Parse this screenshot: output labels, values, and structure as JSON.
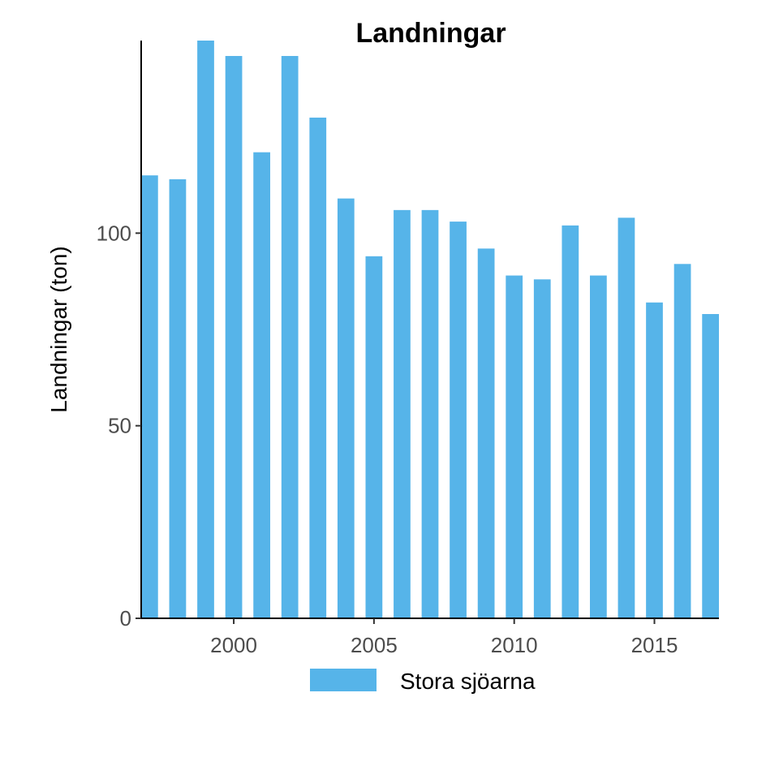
{
  "chart_data": {
    "type": "bar",
    "title": "Landningar",
    "xlabel": "",
    "ylabel": "Landningar (ton)",
    "x": [
      1997,
      1998,
      1999,
      2000,
      2001,
      2002,
      2003,
      2004,
      2005,
      2006,
      2007,
      2008,
      2009,
      2010,
      2011,
      2012,
      2013,
      2014,
      2015,
      2016,
      2017
    ],
    "series": [
      {
        "name": "Stora sjöarna",
        "color": "#56b4e9",
        "values": [
          115,
          114,
          150,
          146,
          121,
          146,
          130,
          109,
          94,
          106,
          106,
          103,
          96,
          89,
          88,
          102,
          89,
          104,
          82,
          92,
          79
        ]
      }
    ],
    "xlim": [
      1996.7,
      2017.3
    ],
    "ylim": [
      0,
      150
    ],
    "xticks": [
      2000,
      2005,
      2010,
      2015
    ],
    "yticks": [
      0,
      50,
      100
    ],
    "grid": false,
    "legend_position": "bottom"
  }
}
